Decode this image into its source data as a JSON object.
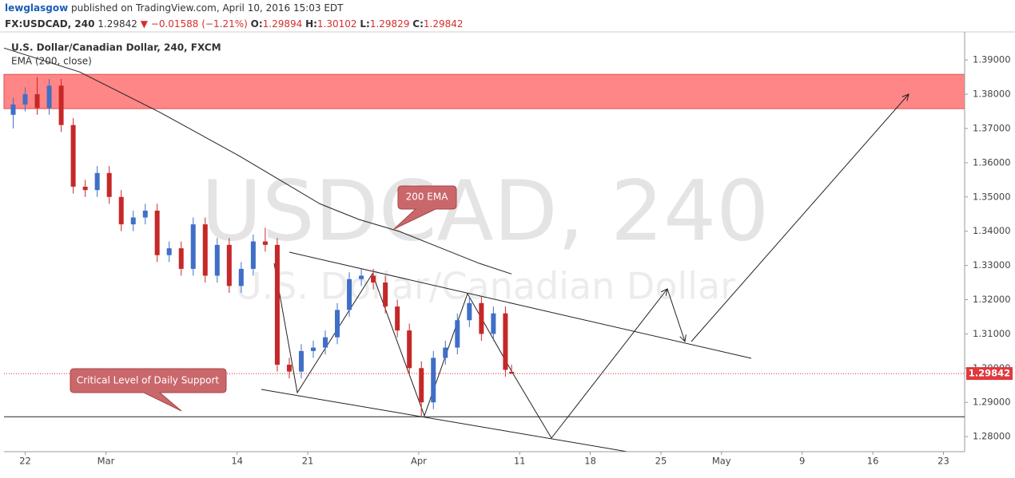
{
  "chart_data": {
    "type": "candlestick",
    "publisher_line": {
      "author": "lewglasgow",
      "text": "published on TradingView.com, April 10, 2016 15:03 EDT"
    },
    "quote_line": {
      "symbol": "FX:USDCAD, 240",
      "last": 1.29842,
      "change": "▼ −0.01588 (−1.21%)",
      "open_label": "O:",
      "open": 1.29894,
      "high_label": "H:",
      "high": 1.30102,
      "low_label": "L:",
      "low": 1.29829,
      "close_label": "C:",
      "close": 1.29842
    },
    "watermark": [
      "USDCAD, 240",
      "U.S. Dollar/Canadian Dollar"
    ],
    "annotations": [
      "200 EMA",
      "Critical Level of Daily Support"
    ],
    "up_color": "#3f6fc6",
    "down_color": "#c62828",
    "series": [
      {
        "name": "U.S. Dollar/Canadian Dollar, 240, FXCM",
        "x": [
          -1.19,
          0,
          1.19,
          2.38,
          3.57,
          4.76,
          5.95,
          7.14,
          8.33,
          9.52,
          10.71,
          11.9,
          13.08,
          14.27,
          15.46,
          16.65,
          17.84,
          19.03,
          20.22,
          21.41,
          22.6,
          23.79,
          24.98,
          26.17,
          27.36,
          28.55,
          29.74,
          30.93,
          32.12,
          33.31,
          34.5,
          35.69,
          36.88,
          38.07,
          39.26,
          40.45,
          41.64,
          42.83,
          44.02,
          45.21,
          46.4,
          47.59,
          48.2
        ],
        "open": [
          1.374,
          1.377,
          1.38,
          1.376,
          1.3825,
          1.371,
          1.353,
          1.352,
          1.357,
          1.35,
          1.342,
          1.344,
          1.346,
          1.333,
          1.335,
          1.329,
          1.342,
          1.327,
          1.336,
          1.324,
          1.329,
          1.337,
          1.336,
          1.301,
          1.299,
          1.305,
          1.306,
          1.309,
          1.317,
          1.326,
          1.327,
          1.325,
          1.318,
          1.311,
          1.3,
          1.29,
          1.303,
          1.306,
          1.314,
          1.319,
          1.31,
          1.316,
          1.29894
        ],
        "high": [
          1.379,
          1.382,
          1.385,
          1.3845,
          1.3845,
          1.373,
          1.355,
          1.359,
          1.359,
          1.352,
          1.346,
          1.348,
          1.348,
          1.337,
          1.337,
          1.344,
          1.344,
          1.338,
          1.338,
          1.331,
          1.339,
          1.341,
          1.338,
          1.303,
          1.307,
          1.308,
          1.311,
          1.319,
          1.328,
          1.329,
          1.329,
          1.327,
          1.32,
          1.313,
          1.302,
          1.305,
          1.308,
          1.316,
          1.321,
          1.321,
          1.318,
          1.318,
          1.30102
        ],
        "low": [
          1.37,
          1.375,
          1.374,
          1.374,
          1.369,
          1.351,
          1.35,
          1.35,
          1.348,
          1.34,
          1.34,
          1.342,
          1.331,
          1.331,
          1.327,
          1.327,
          1.325,
          1.325,
          1.322,
          1.322,
          1.327,
          1.334,
          1.299,
          1.297,
          1.297,
          1.303,
          1.304,
          1.307,
          1.315,
          1.324,
          1.323,
          1.316,
          1.309,
          1.298,
          1.286,
          1.288,
          1.301,
          1.304,
          1.312,
          1.308,
          1.308,
          1.2975,
          1.29829
        ],
        "close": [
          1.377,
          1.38,
          1.376,
          1.3825,
          1.371,
          1.353,
          1.352,
          1.357,
          1.35,
          1.342,
          1.344,
          1.346,
          1.333,
          1.335,
          1.329,
          1.342,
          1.327,
          1.336,
          1.324,
          1.329,
          1.337,
          1.336,
          1.301,
          1.299,
          1.305,
          1.306,
          1.309,
          1.317,
          1.326,
          1.327,
          1.325,
          1.318,
          1.311,
          1.3,
          1.29,
          1.303,
          1.306,
          1.314,
          1.319,
          1.31,
          1.316,
          1.2995,
          1.29842
        ]
      }
    ],
    "ema": {
      "name": "EMA (200, close)",
      "color": "#222222",
      "x": [
        -2.1,
        5.4,
        13.3,
        21.2,
        25.2,
        29.2,
        33.1,
        37.1,
        41.1,
        45.0,
        48.2
      ],
      "values": [
        1.3935,
        1.3865,
        1.3748,
        1.362,
        1.355,
        1.348,
        1.3434,
        1.3399,
        1.3352,
        1.3306,
        1.3275
      ]
    },
    "resistance_zone": [
      1.3758,
      1.3858
    ],
    "zone_color": "#ff7f7f",
    "support_level": 1.2858,
    "xlim": [
      -2.1,
      93.1
    ],
    "ylim": [
      1.2756,
      1.3982
    ],
    "xticks": [
      {
        "value": 0,
        "label": "22"
      },
      {
        "value": 8,
        "label": "Mar"
      },
      {
        "value": 21,
        "label": "14"
      },
      {
        "value": 28,
        "label": "21"
      },
      {
        "value": 39,
        "label": "Apr"
      },
      {
        "value": 49,
        "label": "11"
      },
      {
        "value": 56,
        "label": "18"
      },
      {
        "value": 63,
        "label": "25"
      },
      {
        "value": 69,
        "label": "May"
      },
      {
        "value": 77,
        "label": "9"
      },
      {
        "value": 84,
        "label": "16"
      },
      {
        "value": 91,
        "label": "23"
      }
    ],
    "yticks": [
      {
        "value": 1.28,
        "label": "1.28000"
      },
      {
        "value": 1.29,
        "label": "1.29000"
      },
      {
        "value": 1.3,
        "label": "1.30000"
      },
      {
        "value": 1.31,
        "label": "1.31000"
      },
      {
        "value": 1.32,
        "label": "1.32000"
      },
      {
        "value": 1.33,
        "label": "1.33000"
      },
      {
        "value": 1.34,
        "label": "1.34000"
      },
      {
        "value": 1.35,
        "label": "1.35000"
      },
      {
        "value": 1.36,
        "label": "1.36000"
      },
      {
        "value": 1.37,
        "label": "1.37000"
      },
      {
        "value": 1.38,
        "label": "1.38000"
      },
      {
        "value": 1.39,
        "label": "1.39000"
      }
    ],
    "grid": false
  }
}
